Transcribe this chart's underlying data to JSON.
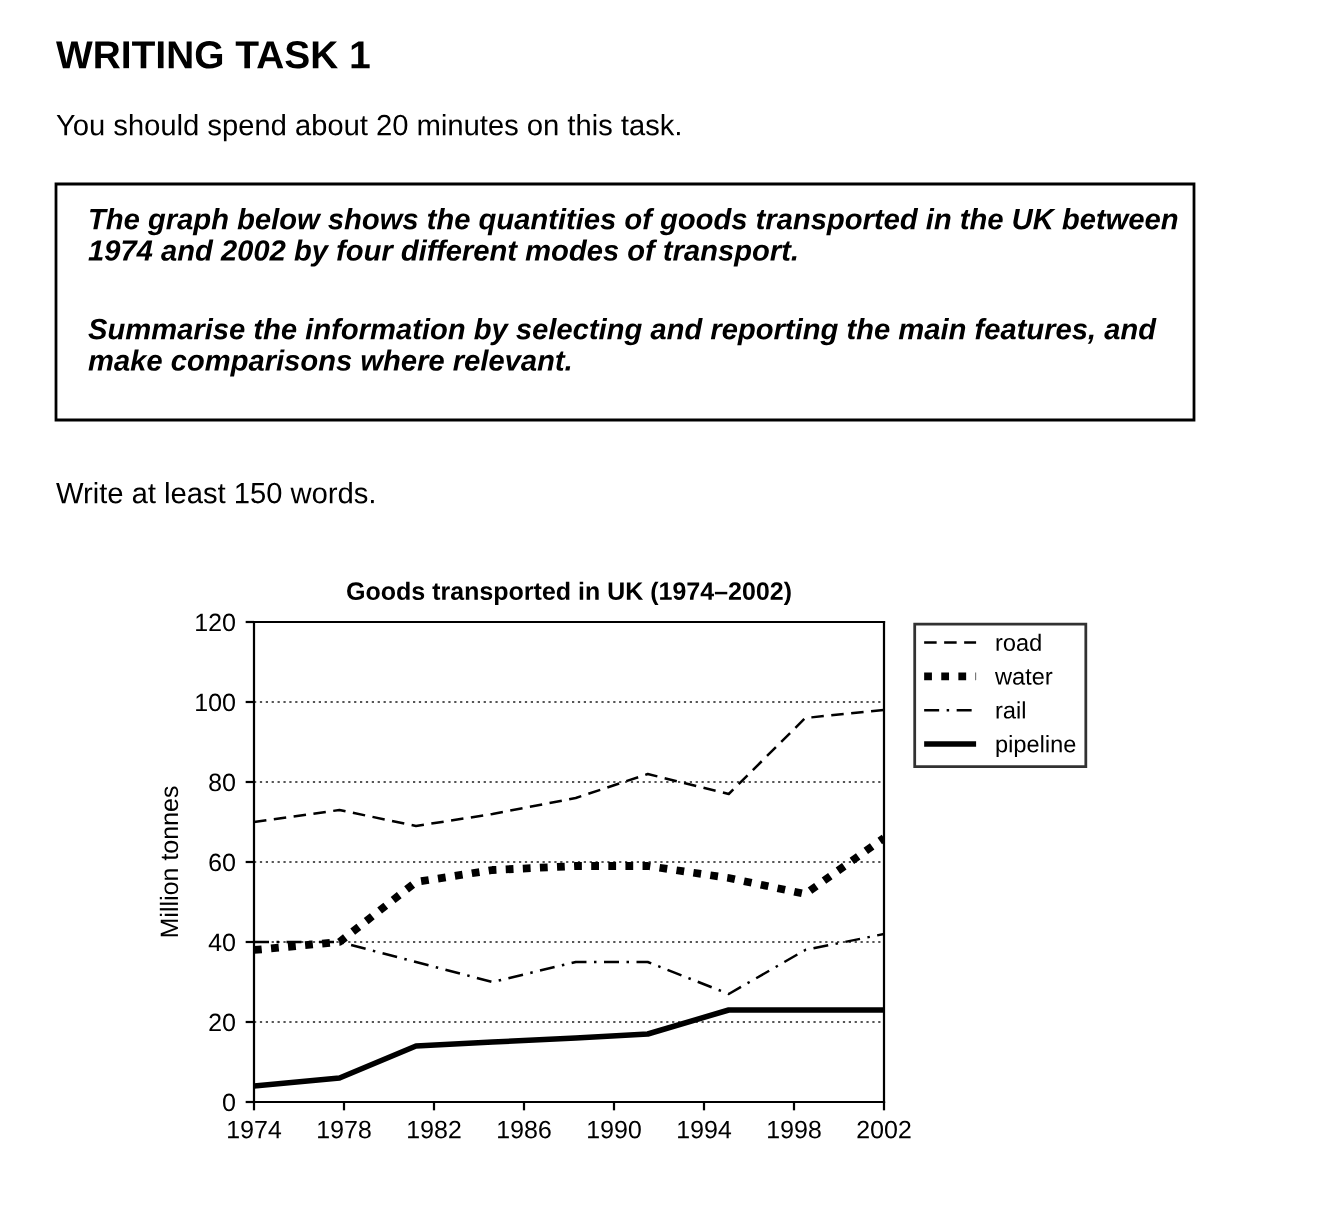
{
  "chart_data": {
    "type": "line",
    "title": "Goods transported in UK (1974–2002)",
    "ylabel": "Million tonnes",
    "annotations": [
      "WRITING TASK 1",
      "You should spend about 20 minutes on this task.",
      "The graph below shows the quantities of goods transported in the UK between 1974 and 2002 by four different modes of transport.",
      "Summarise the information by selecting and reporting the main features, and make comparisons where relevant.",
      "Write at least 150 words."
    ],
    "x": [
      1974,
      1977.8,
      1981.2,
      1984.6,
      1988.3,
      1991.5,
      1995.1,
      1998.5,
      2002
    ],
    "series": [
      {
        "name": "road",
        "color": "#000000",
        "line_style": "dashed",
        "values": [
          70,
          73,
          69,
          72,
          76,
          82,
          77,
          96,
          98
        ]
      },
      {
        "name": "water",
        "color": "#000000",
        "line_style": "dotted",
        "values": [
          38,
          40,
          55,
          58,
          59,
          59,
          56,
          52,
          66
        ]
      },
      {
        "name": "rail",
        "color": "#000000",
        "line_style": "dashdot",
        "values": [
          40,
          40,
          35,
          30,
          35,
          35,
          27,
          38,
          42
        ]
      },
      {
        "name": "pipeline",
        "color": "#000000",
        "line_style": "solid",
        "values": [
          4,
          6,
          14,
          15,
          16,
          17,
          23,
          23,
          23
        ]
      }
    ],
    "xlim": [
      1974,
      2002
    ],
    "xticks": [
      1974,
      1978,
      1982,
      1986,
      1990,
      1994,
      1998,
      2002
    ],
    "ylim": [
      0,
      120
    ],
    "yticks": [
      0,
      20,
      40,
      60,
      80,
      100,
      120
    ],
    "grid": "y",
    "legend": "top right",
    "marker": "none"
  }
}
